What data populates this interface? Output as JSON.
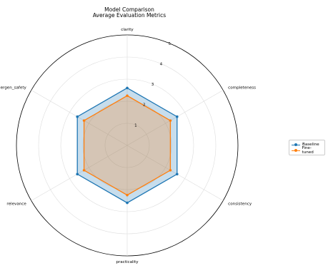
{
  "chart_data": {
    "type": "radar",
    "title": "Model Comparison",
    "subtitle": "Average Evaluation Metrics",
    "axes": [
      "clarity",
      "completeness",
      "consistency",
      "practicality",
      "relevance",
      "allergen_safety"
    ],
    "rlim": [
      0,
      5
    ],
    "rticks": [
      1,
      2,
      3,
      4,
      5
    ],
    "grid": true,
    "legend_position": "right",
    "series": [
      {
        "name": "Baseline",
        "color": "#1f77b4",
        "values": [
          2.6,
          2.6,
          2.6,
          2.6,
          2.6,
          2.6
        ]
      },
      {
        "name": "Fine-tuned",
        "color": "#ff7f0e",
        "values": [
          2.25,
          2.25,
          2.25,
          2.25,
          2.25,
          2.25
        ]
      }
    ]
  }
}
